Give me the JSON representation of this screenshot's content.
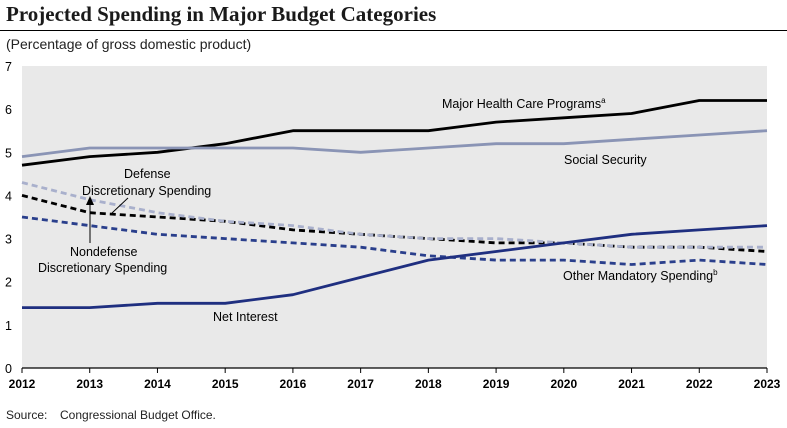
{
  "chart_data": {
    "type": "line",
    "title": "Projected Spending in Major Budget Categories",
    "subtitle": "(Percentage of gross domestic product)",
    "x": [
      2012,
      2013,
      2014,
      2015,
      2016,
      2017,
      2018,
      2019,
      2020,
      2021,
      2022,
      2023
    ],
    "ylim": [
      0,
      7
    ],
    "yticks": [
      0,
      1,
      2,
      3,
      4,
      5,
      6,
      7
    ],
    "grid": false,
    "series": [
      {
        "name": "Major Health Care Programs",
        "superscript": "a",
        "color": "#000000",
        "dash": "solid",
        "values": [
          4.7,
          4.9,
          5.0,
          5.2,
          5.5,
          5.5,
          5.5,
          5.7,
          5.8,
          5.9,
          6.2,
          6.2
        ]
      },
      {
        "name": "Social Security",
        "superscript": "",
        "color": "#8a94b5",
        "dash": "solid",
        "values": [
          4.9,
          5.1,
          5.1,
          5.1,
          5.1,
          5.0,
          5.1,
          5.2,
          5.2,
          5.3,
          5.4,
          5.5
        ]
      },
      {
        "name": "Defense Discretionary Spending",
        "superscript": "",
        "color": "#000000",
        "dash": "dashed",
        "values": [
          4.0,
          3.6,
          3.5,
          3.4,
          3.2,
          3.1,
          3.0,
          2.9,
          2.9,
          2.8,
          2.8,
          2.7
        ]
      },
      {
        "name": "Nondefense Discretionary Spending",
        "superscript": "",
        "color": "#a9b0cc",
        "dash": "dashed",
        "values": [
          4.3,
          3.9,
          3.6,
          3.4,
          3.3,
          3.1,
          3.0,
          3.0,
          2.9,
          2.8,
          2.8,
          2.8
        ]
      },
      {
        "name": "Other Mandatory Spending",
        "superscript": "b",
        "color": "#2a3f8c",
        "dash": "dashed",
        "values": [
          3.5,
          3.3,
          3.1,
          3.0,
          2.9,
          2.8,
          2.6,
          2.5,
          2.5,
          2.4,
          2.5,
          2.4
        ]
      },
      {
        "name": "Net Interest",
        "superscript": "",
        "color": "#1f2f80",
        "dash": "solid",
        "values": [
          1.4,
          1.4,
          1.5,
          1.5,
          1.7,
          2.1,
          2.5,
          2.7,
          2.9,
          3.1,
          3.2,
          3.3
        ]
      }
    ],
    "labels": {
      "health": "Major Health Care Programs",
      "social": "Social Security",
      "defense_line1": "Defense",
      "defense_line2": "Discretionary Spending",
      "nondefense_line1": "Nondefense",
      "nondefense_line2": "Discretionary Spending",
      "other": "Other Mandatory Spending",
      "interest": "Net Interest"
    },
    "source_label": "Source:",
    "source_text": "Congressional Budget Office.",
    "colors": {
      "plot_bg": "#e9e9e9"
    }
  }
}
